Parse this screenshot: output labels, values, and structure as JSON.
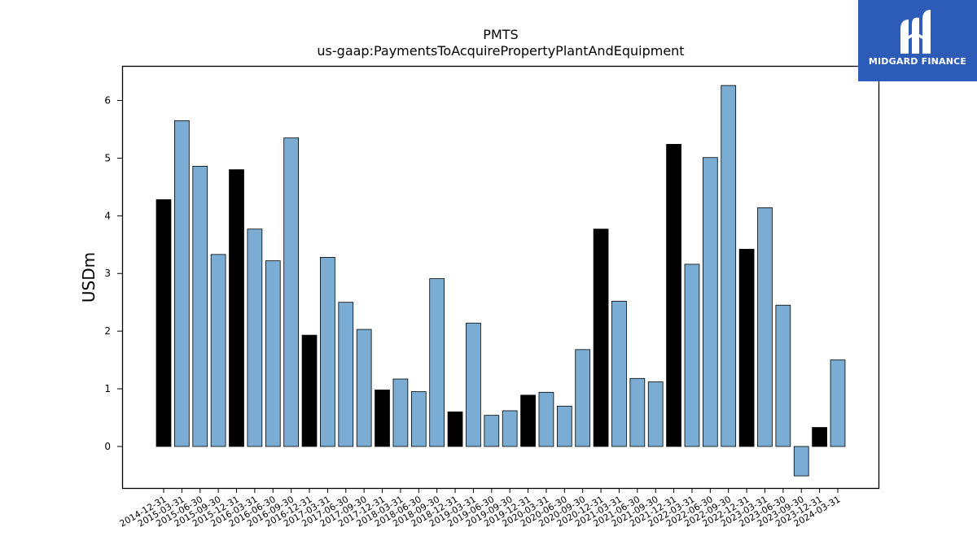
{
  "logo": {
    "text": "MIDGARD FINANCE",
    "background": "#2d5bb8"
  },
  "chart_data": {
    "type": "bar",
    "title": "PMTS",
    "subtitle": "us-gaap:PaymentsToAcquirePropertyPlantAndEquipment",
    "xlabel": "",
    "ylabel": "USDm",
    "ylim": [
      -0.72,
      6.6
    ],
    "yticks": [
      0,
      1,
      2,
      3,
      4,
      5,
      6
    ],
    "grid": false,
    "colors": {
      "fiscal_year_end": "#000000",
      "quarter": "#7badd4",
      "edge": "#000000"
    },
    "categories": [
      "2014-12-31",
      "2015-03-31",
      "2015-06-30",
      "2015-09-30",
      "2015-12-31",
      "2016-03-31",
      "2016-06-30",
      "2016-09-30",
      "2016-12-31",
      "2017-03-31",
      "2017-06-30",
      "2017-09-30",
      "2017-12-31",
      "2018-03-31",
      "2018-06-30",
      "2018-09-30",
      "2018-12-31",
      "2019-03-31",
      "2019-06-30",
      "2019-09-30",
      "2019-12-31",
      "2020-03-31",
      "2020-06-30",
      "2020-09-30",
      "2020-12-31",
      "2021-03-31",
      "2021-06-30",
      "2021-09-30",
      "2021-12-31",
      "2022-03-31",
      "2022-06-30",
      "2022-09-30",
      "2022-12-31",
      "2023-03-31",
      "2023-06-30",
      "2023-09-30",
      "2023-12-31",
      "2024-03-31"
    ],
    "values": [
      4.28,
      5.65,
      4.86,
      3.33,
      4.8,
      3.77,
      3.22,
      5.35,
      1.93,
      3.28,
      2.5,
      2.03,
      0.98,
      1.17,
      0.95,
      2.91,
      0.6,
      2.14,
      0.54,
      0.62,
      0.89,
      0.94,
      0.7,
      1.68,
      3.77,
      2.52,
      1.18,
      1.12,
      5.24,
      3.16,
      5.01,
      6.26,
      3.42,
      4.14,
      2.45,
      -0.51,
      0.33,
      1.5
    ],
    "highlight": [
      true,
      false,
      false,
      false,
      true,
      false,
      false,
      false,
      true,
      false,
      false,
      false,
      true,
      false,
      false,
      false,
      true,
      false,
      false,
      false,
      true,
      false,
      false,
      false,
      true,
      false,
      false,
      false,
      true,
      false,
      false,
      false,
      true,
      false,
      false,
      false,
      true,
      false
    ]
  }
}
